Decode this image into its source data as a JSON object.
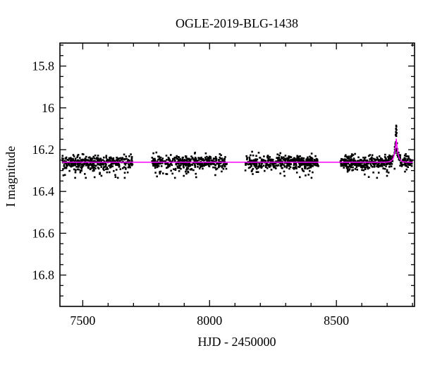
{
  "chart_data": {
    "type": "scatter",
    "title": "OGLE-2019-BLG-1438",
    "xlabel": "HJD - 2450000",
    "ylabel": "I magnitude",
    "xlim": [
      7410,
      8808
    ],
    "ylim": [
      15.69,
      16.95
    ],
    "y_axis_inverted_magnitude": true,
    "x_ticks_major": [
      7500,
      8000,
      8500
    ],
    "x_tick_labels": [
      "7500",
      "8000",
      "8500"
    ],
    "x_minor_step": 100,
    "y_ticks_major": [
      15.8,
      16.0,
      16.2,
      16.4,
      16.6,
      16.8
    ],
    "y_tick_labels": [
      "15.8",
      "16",
      "16.2",
      "16.4",
      "16.6",
      "16.8"
    ],
    "y_minor_step": 0.05,
    "grid": false,
    "legend": false,
    "baseline_mag": 16.26,
    "scatter_sigma": 0.016,
    "outlier_fraction": 0.07,
    "marker_size_px": 2.6,
    "seasons": [
      {
        "t_start": 7419,
        "t_end": 7697,
        "n_points": 400
      },
      {
        "t_start": 7772,
        "t_end": 8068,
        "n_points": 420
      },
      {
        "t_start": 8141,
        "t_end": 8430,
        "n_points": 420
      },
      {
        "t_start": 8516,
        "t_end": 8798,
        "n_points": 420
      }
    ],
    "model": {
      "shape": "point-lens-spike",
      "t0": 8736,
      "baseline": 16.26,
      "peak_mag": 16.148,
      "tau_days": 7,
      "t_start": 7419,
      "t_end": 8802
    },
    "peak_points": [
      [
        8733.5,
        16.13
      ],
      [
        8734.5,
        16.115
      ],
      [
        8735.0,
        16.1
      ],
      [
        8735.7,
        16.085
      ],
      [
        8736.2,
        16.09
      ],
      [
        8736.8,
        16.105
      ],
      [
        8737.5,
        16.12
      ],
      [
        8735.4,
        16.125
      ]
    ],
    "colors": {
      "points": "#000000",
      "model_line": "#ff00ff",
      "frame": "#000000",
      "background": "#ffffff",
      "text": "#000000"
    }
  }
}
